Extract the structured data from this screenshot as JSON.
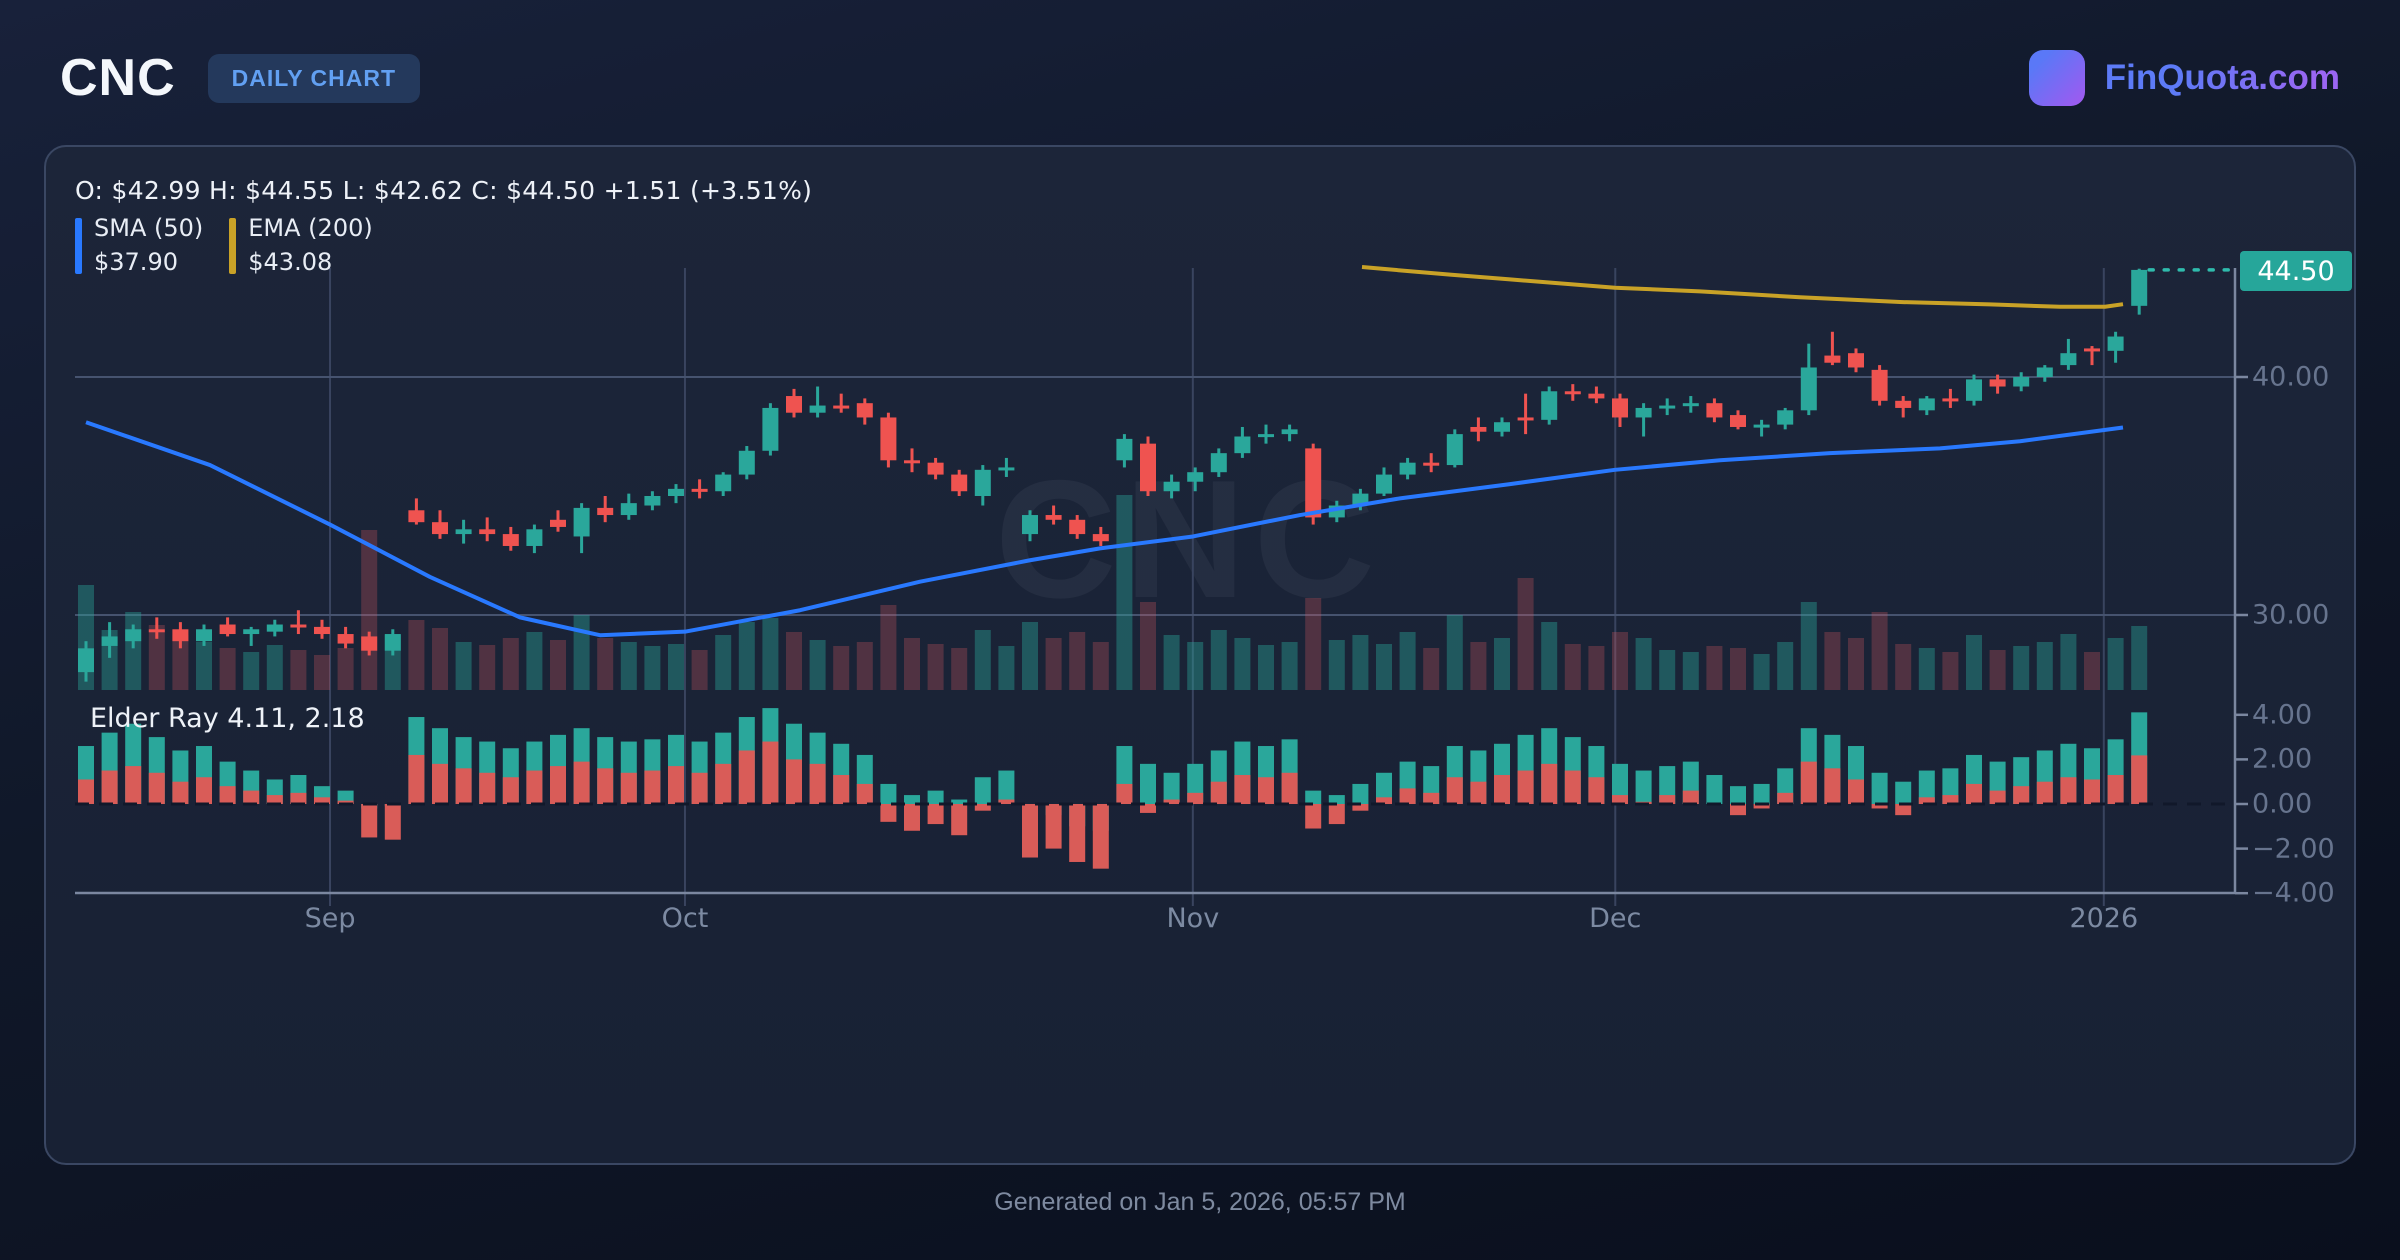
{
  "header": {
    "symbol": "CNC",
    "badge": "DAILY CHART",
    "brand": "FinQuota.com"
  },
  "ohlc_line": "O: $42.99 H: $44.55 L: $42.62 C: $44.50 +1.51 (+3.51%)",
  "legend": {
    "sma": {
      "label": "SMA (50)",
      "value": "$37.90",
      "color": "#2979ff"
    },
    "ema": {
      "label": "EMA (200)",
      "value": "$43.08",
      "color": "#c9a227"
    }
  },
  "indicator_label": "Elder Ray 4.11, 2.18",
  "watermark": "CNC",
  "price_badge": "44.50",
  "footer": "Generated on Jan 5, 2026, 05:57 PM",
  "chart_data": {
    "type": "candlestick+volume+elder_ray",
    "title": "CNC daily candlestick chart with SMA(50), EMA(200), volume and Elder Ray",
    "price_ylim": [
      26.8,
      45.3
    ],
    "elder_ylim": [
      -4,
      4
    ],
    "last_price": 44.5,
    "elder_last": {
      "bull": 4.11,
      "bear": 2.18
    },
    "price_ticks": [
      {
        "label": "40.00",
        "value": 40
      },
      {
        "label": "30.00",
        "value": 30
      }
    ],
    "elder_ticks": [
      {
        "label": "4.00",
        "value": 4
      },
      {
        "label": "2.00",
        "value": 2
      },
      {
        "label": "0.00",
        "value": 0
      },
      {
        "label": "−2.00",
        "value": -2
      },
      {
        "label": "−4.00",
        "value": -4
      }
    ],
    "x_ticks": [
      {
        "label": "Sep",
        "i": 10.34
      },
      {
        "label": "Oct",
        "i": 25.38
      },
      {
        "label": "Nov",
        "i": 46.9
      },
      {
        "label": "Dec",
        "i": 64.8
      },
      {
        "label": "2026",
        "i": 85.5
      }
    ],
    "colors": {
      "up": "#2aa79b",
      "down": "#ef5350",
      "vol_up": "rgba(42,167,155,0.40)",
      "vol_down": "rgba(224,88,98,0.28)",
      "elder_bull": "#2aa79b",
      "elder_bear": "#d95c58",
      "sma": "#2979ff",
      "ema": "#c9a227",
      "grid": "#39445f",
      "grid_h": "#46536f",
      "axis": "#7b87a0",
      "label": "#67748e",
      "badge_bg": "#26a69a",
      "zero_dash": "#11182a",
      "dotted": "#2fbbac"
    },
    "candles": [
      [
        27.6,
        28.9,
        27.2,
        28.6
      ],
      [
        28.7,
        29.7,
        28.2,
        29.1
      ],
      [
        28.9,
        29.6,
        28.6,
        29.4
      ],
      [
        29.4,
        29.9,
        29.0,
        29.3
      ],
      [
        29.4,
        29.7,
        28.6,
        28.9
      ],
      [
        28.9,
        29.6,
        28.7,
        29.4
      ],
      [
        29.6,
        29.9,
        29.1,
        29.2
      ],
      [
        29.2,
        29.5,
        28.7,
        29.4
      ],
      [
        29.3,
        29.8,
        29.1,
        29.6
      ],
      [
        29.6,
        30.2,
        29.2,
        29.5
      ],
      [
        29.5,
        29.8,
        29.0,
        29.2
      ],
      [
        29.2,
        29.5,
        28.6,
        28.8
      ],
      [
        29.1,
        29.3,
        28.3,
        28.5
      ],
      [
        28.5,
        29.4,
        28.3,
        29.2
      ],
      [
        34.4,
        34.9,
        33.8,
        33.9
      ],
      [
        33.9,
        34.4,
        33.2,
        33.4
      ],
      [
        33.4,
        34.0,
        33.0,
        33.6
      ],
      [
        33.6,
        34.1,
        33.1,
        33.4
      ],
      [
        33.4,
        33.7,
        32.7,
        32.9
      ],
      [
        32.9,
        33.8,
        32.6,
        33.6
      ],
      [
        34.0,
        34.4,
        33.5,
        33.7
      ],
      [
        33.3,
        34.7,
        32.6,
        34.5
      ],
      [
        34.5,
        35.0,
        33.9,
        34.2
      ],
      [
        34.2,
        35.1,
        34.0,
        34.7
      ],
      [
        34.6,
        35.2,
        34.4,
        35.0
      ],
      [
        35.0,
        35.5,
        34.7,
        35.3
      ],
      [
        35.3,
        35.7,
        34.9,
        35.2
      ],
      [
        35.2,
        36.0,
        35.0,
        35.9
      ],
      [
        35.9,
        37.1,
        35.7,
        36.9
      ],
      [
        36.9,
        38.9,
        36.7,
        38.7
      ],
      [
        39.2,
        39.5,
        38.3,
        38.5
      ],
      [
        38.5,
        39.6,
        38.3,
        38.8
      ],
      [
        38.8,
        39.3,
        38.5,
        38.7
      ],
      [
        38.9,
        39.1,
        38.0,
        38.3
      ],
      [
        38.3,
        38.5,
        36.2,
        36.5
      ],
      [
        36.5,
        37.0,
        36.0,
        36.4
      ],
      [
        36.4,
        36.6,
        35.7,
        35.9
      ],
      [
        35.9,
        36.1,
        35.0,
        35.2
      ],
      [
        35.0,
        36.3,
        34.6,
        36.1
      ],
      [
        36.1,
        36.6,
        35.8,
        36.2
      ],
      [
        33.4,
        34.4,
        33.1,
        34.2
      ],
      [
        34.2,
        34.6,
        33.8,
        34.0
      ],
      [
        34.0,
        34.2,
        33.2,
        33.4
      ],
      [
        33.4,
        33.7,
        32.9,
        33.1
      ],
      [
        36.5,
        37.6,
        36.2,
        37.4
      ],
      [
        37.2,
        37.5,
        35.0,
        35.2
      ],
      [
        35.2,
        35.9,
        34.9,
        35.6
      ],
      [
        35.6,
        36.2,
        35.2,
        36.0
      ],
      [
        36.0,
        37.0,
        35.8,
        36.8
      ],
      [
        36.8,
        37.9,
        36.6,
        37.5
      ],
      [
        37.5,
        38.0,
        37.2,
        37.6
      ],
      [
        37.6,
        38.0,
        37.3,
        37.8
      ],
      [
        37.0,
        37.2,
        33.8,
        34.1
      ],
      [
        34.1,
        34.8,
        33.9,
        34.6
      ],
      [
        34.6,
        35.3,
        34.4,
        35.1
      ],
      [
        35.1,
        36.2,
        35.0,
        35.9
      ],
      [
        35.9,
        36.6,
        35.7,
        36.4
      ],
      [
        36.4,
        36.8,
        36.0,
        36.3
      ],
      [
        36.3,
        37.8,
        36.2,
        37.6
      ],
      [
        37.9,
        38.3,
        37.3,
        37.7
      ],
      [
        37.7,
        38.3,
        37.5,
        38.1
      ],
      [
        38.3,
        39.3,
        37.6,
        38.2
      ],
      [
        38.2,
        39.6,
        38.0,
        39.4
      ],
      [
        39.4,
        39.7,
        39.0,
        39.3
      ],
      [
        39.3,
        39.6,
        38.9,
        39.1
      ],
      [
        39.1,
        39.3,
        37.9,
        38.3
      ],
      [
        38.3,
        38.9,
        37.5,
        38.7
      ],
      [
        38.7,
        39.1,
        38.4,
        38.8
      ],
      [
        38.8,
        39.2,
        38.5,
        38.9
      ],
      [
        38.9,
        39.1,
        38.1,
        38.3
      ],
      [
        38.4,
        38.6,
        37.8,
        37.9
      ],
      [
        37.9,
        38.2,
        37.5,
        38.0
      ],
      [
        38.0,
        38.7,
        37.8,
        38.6
      ],
      [
        38.6,
        41.4,
        38.4,
        40.4
      ],
      [
        40.9,
        41.9,
        40.5,
        40.6
      ],
      [
        41.0,
        41.2,
        40.2,
        40.4
      ],
      [
        40.3,
        40.5,
        38.8,
        39.0
      ],
      [
        39.0,
        39.2,
        38.3,
        38.7
      ],
      [
        38.6,
        39.2,
        38.4,
        39.1
      ],
      [
        39.1,
        39.5,
        38.7,
        39.0
      ],
      [
        39.0,
        40.1,
        38.8,
        39.9
      ],
      [
        39.9,
        40.1,
        39.3,
        39.6
      ],
      [
        39.6,
        40.2,
        39.4,
        40.0
      ],
      [
        40.0,
        40.5,
        39.8,
        40.4
      ],
      [
        40.5,
        41.6,
        40.3,
        41.0
      ],
      [
        41.2,
        41.3,
        40.5,
        41.1
      ],
      [
        41.1,
        41.9,
        40.6,
        41.7
      ],
      [
        42.99,
        44.55,
        42.62,
        44.5
      ]
    ],
    "volume": [
      105,
      60,
      78,
      65,
      55,
      48,
      42,
      38,
      45,
      40,
      35,
      42,
      160,
      55,
      70,
      62,
      48,
      45,
      52,
      58,
      50,
      75,
      52,
      48,
      44,
      46,
      40,
      55,
      68,
      72,
      58,
      50,
      44,
      48,
      85,
      52,
      46,
      42,
      60,
      44,
      68,
      52,
      58,
      48,
      195,
      88,
      55,
      48,
      60,
      52,
      45,
      48,
      92,
      50,
      55,
      46,
      58,
      42,
      75,
      48,
      52,
      112,
      68,
      46,
      44,
      58,
      52,
      40,
      38,
      44,
      42,
      36,
      48,
      88,
      58,
      52,
      78,
      46,
      42,
      38,
      55,
      40,
      44,
      48,
      56,
      38,
      52,
      64
    ],
    "elder": [
      [
        2.6,
        1.1
      ],
      [
        3.2,
        1.5
      ],
      [
        3.6,
        1.7
      ],
      [
        3.0,
        1.4
      ],
      [
        2.4,
        1.0
      ],
      [
        2.6,
        1.2
      ],
      [
        1.9,
        0.8
      ],
      [
        1.5,
        0.6
      ],
      [
        1.1,
        0.4
      ],
      [
        1.3,
        0.5
      ],
      [
        0.8,
        0.3
      ],
      [
        0.6,
        0.15
      ],
      [
        -0.2,
        -1.5
      ],
      [
        -0.1,
        -1.6
      ],
      [
        3.9,
        2.2
      ],
      [
        3.4,
        1.8
      ],
      [
        3.0,
        1.6
      ],
      [
        2.8,
        1.4
      ],
      [
        2.5,
        1.2
      ],
      [
        2.8,
        1.5
      ],
      [
        3.1,
        1.7
      ],
      [
        3.4,
        1.9
      ],
      [
        3.0,
        1.6
      ],
      [
        2.8,
        1.4
      ],
      [
        2.9,
        1.5
      ],
      [
        3.1,
        1.7
      ],
      [
        2.8,
        1.4
      ],
      [
        3.2,
        1.8
      ],
      [
        3.9,
        2.4
      ],
      [
        4.3,
        2.8
      ],
      [
        3.6,
        2.0
      ],
      [
        3.2,
        1.8
      ],
      [
        2.7,
        1.3
      ],
      [
        2.2,
        0.9
      ],
      [
        0.9,
        -0.8
      ],
      [
        0.4,
        -1.2
      ],
      [
        0.6,
        -0.9
      ],
      [
        0.2,
        -1.4
      ],
      [
        1.2,
        -0.3
      ],
      [
        1.5,
        0.2
      ],
      [
        -0.8,
        -2.4
      ],
      [
        -0.5,
        -2.0
      ],
      [
        -1.0,
        -2.6
      ],
      [
        -1.2,
        -2.9
      ],
      [
        2.6,
        0.9
      ],
      [
        1.8,
        -0.4
      ],
      [
        1.4,
        0.2
      ],
      [
        1.8,
        0.5
      ],
      [
        2.4,
        1.0
      ],
      [
        2.8,
        1.3
      ],
      [
        2.6,
        1.2
      ],
      [
        2.9,
        1.4
      ],
      [
        0.6,
        -1.1
      ],
      [
        0.4,
        -0.9
      ],
      [
        0.9,
        -0.3
      ],
      [
        1.4,
        0.3
      ],
      [
        1.9,
        0.7
      ],
      [
        1.7,
        0.5
      ],
      [
        2.6,
        1.2
      ],
      [
        2.4,
        1.0
      ],
      [
        2.7,
        1.3
      ],
      [
        3.1,
        1.5
      ],
      [
        3.4,
        1.8
      ],
      [
        3.0,
        1.5
      ],
      [
        2.6,
        1.2
      ],
      [
        1.8,
        0.4
      ],
      [
        1.5,
        0.1
      ],
      [
        1.7,
        0.4
      ],
      [
        1.9,
        0.6
      ],
      [
        1.3,
        0.0
      ],
      [
        0.8,
        -0.5
      ],
      [
        0.9,
        -0.2
      ],
      [
        1.6,
        0.5
      ],
      [
        3.4,
        1.9
      ],
      [
        3.1,
        1.6
      ],
      [
        2.6,
        1.1
      ],
      [
        1.4,
        -0.2
      ],
      [
        1.0,
        -0.5
      ],
      [
        1.5,
        0.3
      ],
      [
        1.6,
        0.4
      ],
      [
        2.2,
        0.9
      ],
      [
        1.9,
        0.6
      ],
      [
        2.1,
        0.8
      ],
      [
        2.4,
        1.0
      ],
      [
        2.7,
        1.2
      ],
      [
        2.5,
        1.1
      ],
      [
        2.9,
        1.3
      ],
      [
        4.11,
        2.18
      ]
    ],
    "sma50": [
      [
        86,
        38.1
      ],
      [
        210,
        36.3
      ],
      [
        330,
        33.8
      ],
      [
        430,
        31.6
      ],
      [
        520,
        29.9
      ],
      [
        600,
        29.15
      ],
      [
        685,
        29.3
      ],
      [
        800,
        30.2
      ],
      [
        920,
        31.4
      ],
      [
        1030,
        32.3
      ],
      [
        1100,
        32.8
      ],
      [
        1193,
        33.3
      ],
      [
        1300,
        34.2
      ],
      [
        1400,
        34.9
      ],
      [
        1510,
        35.5
      ],
      [
        1615,
        36.1
      ],
      [
        1720,
        36.5
      ],
      [
        1830,
        36.8
      ],
      [
        1940,
        37.0
      ],
      [
        2020,
        37.3
      ],
      [
        2123,
        37.88
      ]
    ],
    "ema200": [
      [
        1362,
        44.62
      ],
      [
        1450,
        44.3
      ],
      [
        1510,
        44.1
      ],
      [
        1615,
        43.75
      ],
      [
        1700,
        43.6
      ],
      [
        1800,
        43.35
      ],
      [
        1900,
        43.15
      ],
      [
        1990,
        43.05
      ],
      [
        2060,
        42.95
      ],
      [
        2105,
        42.95
      ],
      [
        2123,
        43.06
      ]
    ]
  }
}
